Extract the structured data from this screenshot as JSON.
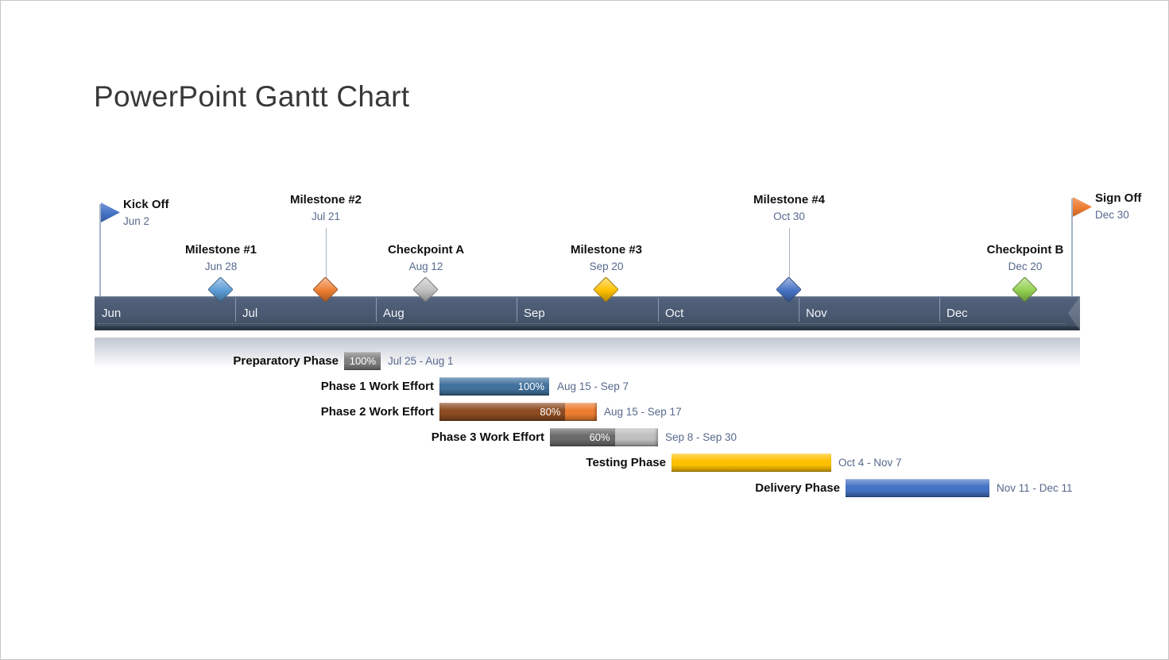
{
  "slide": {
    "title": "PowerPoint Gantt Chart"
  },
  "chart_data": {
    "type": "gantt-timeline",
    "timeline": {
      "months": [
        "Jun",
        "Jul",
        "Aug",
        "Sep",
        "Oct",
        "Nov",
        "Dec"
      ],
      "bar_color": "#4A5970",
      "month_text_color": "#F3F5F9",
      "shadow_color": "#C2C7D1"
    },
    "milestones": [
      {
        "label": "Kick Off",
        "date": "Jun 2",
        "month": 0,
        "day": 2,
        "shape": "flag",
        "color": "#4472C4",
        "level": "high"
      },
      {
        "label": "Milestone #1",
        "date": "Jun 28",
        "month": 0,
        "day": 28,
        "shape": "diamond",
        "color": "#5B9BD5",
        "level": "low"
      },
      {
        "label": "Milestone #2",
        "date": "Jul 21",
        "month": 1,
        "day": 21,
        "shape": "diamond",
        "color": "#ED7D31",
        "level": "high"
      },
      {
        "label": "Checkpoint A",
        "date": "Aug 12",
        "month": 2,
        "day": 12,
        "shape": "diamond",
        "color": "#BFBFBF",
        "level": "low"
      },
      {
        "label": "Milestone #3",
        "date": "Sep 20",
        "month": 3,
        "day": 20,
        "shape": "diamond",
        "color": "#FFC000",
        "level": "low"
      },
      {
        "label": "Milestone #4",
        "date": "Oct 30",
        "month": 4,
        "day": 30,
        "shape": "diamond",
        "color": "#4472C4",
        "level": "high"
      },
      {
        "label": "Checkpoint B",
        "date": "Dec 20",
        "month": 6,
        "day": 20,
        "shape": "diamond",
        "color": "#92D050",
        "level": "low"
      },
      {
        "label": "Sign Off",
        "date": "Dec 30",
        "month": 6,
        "day": 30,
        "shape": "flag",
        "color": "#ED7D31",
        "level": "high"
      }
    ],
    "tasks": [
      {
        "label": "Preparatory Phase",
        "dates": "Jul 25 - Aug 1",
        "percent": "100%",
        "fill": 1.0,
        "start": [
          1,
          25
        ],
        "end": [
          2,
          1
        ],
        "color": "#7F7F7F"
      },
      {
        "label": "Phase 1 Work Effort",
        "dates": "Aug 15 - Sep 7",
        "percent": "100%",
        "fill": 1.0,
        "start": [
          2,
          15
        ],
        "end": [
          3,
          7
        ],
        "color": "#41719C"
      },
      {
        "label": "Phase 2 Work Effort",
        "dates": "Aug 15 - Sep 17",
        "percent": "80%",
        "fill": 0.8,
        "start": [
          2,
          15
        ],
        "end": [
          3,
          17
        ],
        "color": "#8C4B21",
        "color_remaining": "#ED7D31"
      },
      {
        "label": "Phase 3 Work Effort",
        "dates": "Sep 8 - Sep 30",
        "percent": "60%",
        "fill": 0.6,
        "start": [
          3,
          8
        ],
        "end": [
          3,
          30
        ],
        "color": "#6A6A6A",
        "color_remaining": "#BFBFBF"
      },
      {
        "label": "Testing Phase",
        "dates": "Oct 4 - Nov 7",
        "fill": 1.0,
        "start": [
          4,
          4
        ],
        "end": [
          5,
          7
        ],
        "color": "#FFC000"
      },
      {
        "label": "Delivery Phase",
        "dates": "Nov 11 - Dec 11",
        "fill": 1.0,
        "start": [
          5,
          11
        ],
        "end": [
          6,
          11
        ],
        "color": "#4472C4"
      }
    ]
  }
}
